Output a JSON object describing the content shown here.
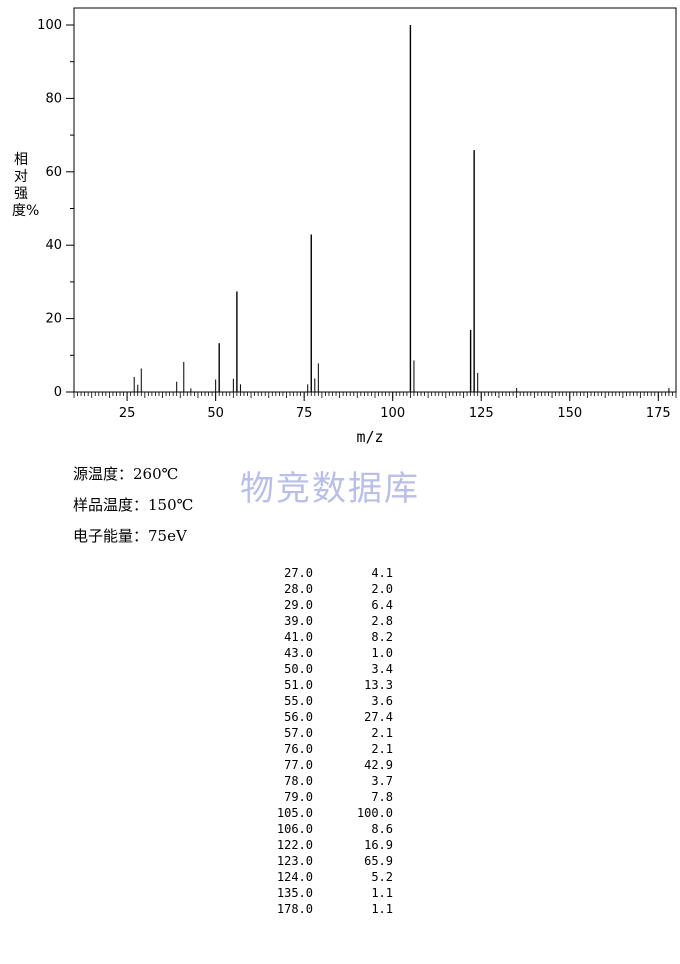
{
  "chart_data": {
    "type": "bar",
    "ylabel": "相对强度%",
    "xlabel": "m/z",
    "xlim": [
      10,
      180
    ],
    "ylim": [
      0,
      100
    ],
    "xticks": [
      25,
      50,
      75,
      100,
      125,
      150,
      175
    ],
    "yticks": [
      0,
      20,
      40,
      60,
      80,
      100
    ],
    "grid": false,
    "peaks": [
      {
        "mz": "27.0",
        "intensity": "4.1"
      },
      {
        "mz": "28.0",
        "intensity": "2.0"
      },
      {
        "mz": "29.0",
        "intensity": "6.4"
      },
      {
        "mz": "39.0",
        "intensity": "2.8"
      },
      {
        "mz": "41.0",
        "intensity": "8.2"
      },
      {
        "mz": "43.0",
        "intensity": "1.0"
      },
      {
        "mz": "50.0",
        "intensity": "3.4"
      },
      {
        "mz": "51.0",
        "intensity": "13.3"
      },
      {
        "mz": "55.0",
        "intensity": "3.6"
      },
      {
        "mz": "56.0",
        "intensity": "27.4"
      },
      {
        "mz": "57.0",
        "intensity": "2.1"
      },
      {
        "mz": "76.0",
        "intensity": "2.1"
      },
      {
        "mz": "77.0",
        "intensity": "42.9"
      },
      {
        "mz": "78.0",
        "intensity": "3.7"
      },
      {
        "mz": "79.0",
        "intensity": "7.8"
      },
      {
        "mz": "105.0",
        "intensity": "100.0"
      },
      {
        "mz": "106.0",
        "intensity": "8.6"
      },
      {
        "mz": "122.0",
        "intensity": "16.9"
      },
      {
        "mz": "123.0",
        "intensity": "65.9"
      },
      {
        "mz": "124.0",
        "intensity": "5.2"
      },
      {
        "mz": "135.0",
        "intensity": "1.1"
      },
      {
        "mz": "178.0",
        "intensity": "1.1"
      }
    ]
  },
  "conditions": [
    "源温度：260℃",
    "样品温度：150℃",
    "电子能量：75eV"
  ],
  "watermark": "物竞数据库"
}
